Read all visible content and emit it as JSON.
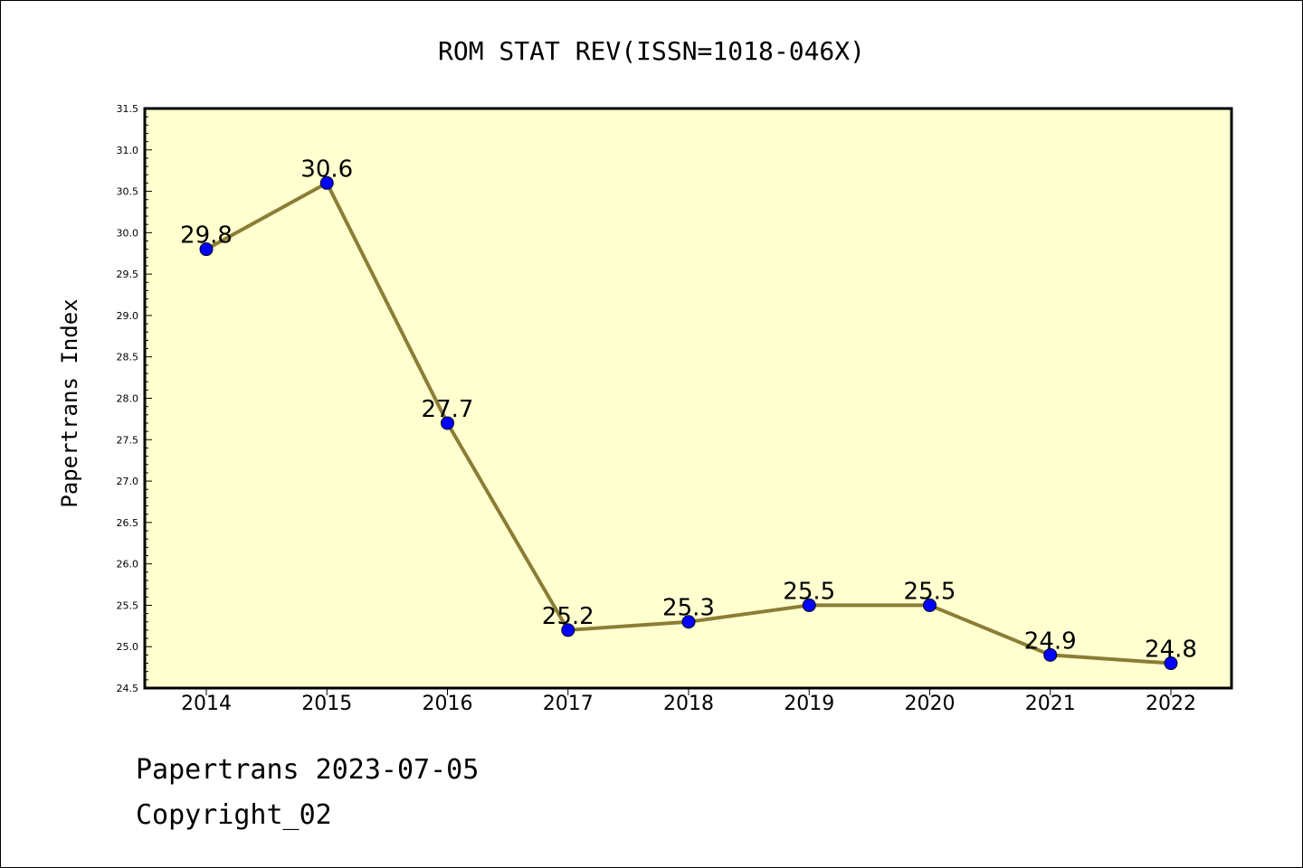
{
  "chart_data": {
    "type": "line",
    "title": "ROM STAT REV(ISSN=1018-046X)",
    "ylabel": "Papertrans Index",
    "xlabel": "",
    "categories": [
      "2014",
      "2015",
      "2016",
      "2017",
      "2018",
      "2019",
      "2020",
      "2021",
      "2022"
    ],
    "series": [
      {
        "values": [
          29.8,
          30.6,
          27.7,
          25.2,
          25.3,
          25.5,
          25.5,
          24.9,
          24.8
        ]
      }
    ],
    "data_labels": [
      "29.8",
      "30.6",
      "27.7",
      "25.2",
      "25.3",
      "25.5",
      "25.5",
      "24.9",
      "24.8"
    ],
    "ylim": [
      24.5,
      31.5
    ],
    "yticks": [
      "24.5",
      "25.0",
      "25.5",
      "26.0",
      "26.5",
      "27.0",
      "27.5",
      "28.0",
      "28.5",
      "29.0",
      "29.5",
      "30.0",
      "30.5",
      "31.0",
      "31.5"
    ],
    "grid": false,
    "legend": "none",
    "colors": {
      "plot_background": "#ffffd0",
      "line": "#8b7d35",
      "marker": "#0000ff"
    }
  },
  "footer": {
    "line1": "Papertrans 2023-07-05",
    "line2": "Copyright_02"
  }
}
